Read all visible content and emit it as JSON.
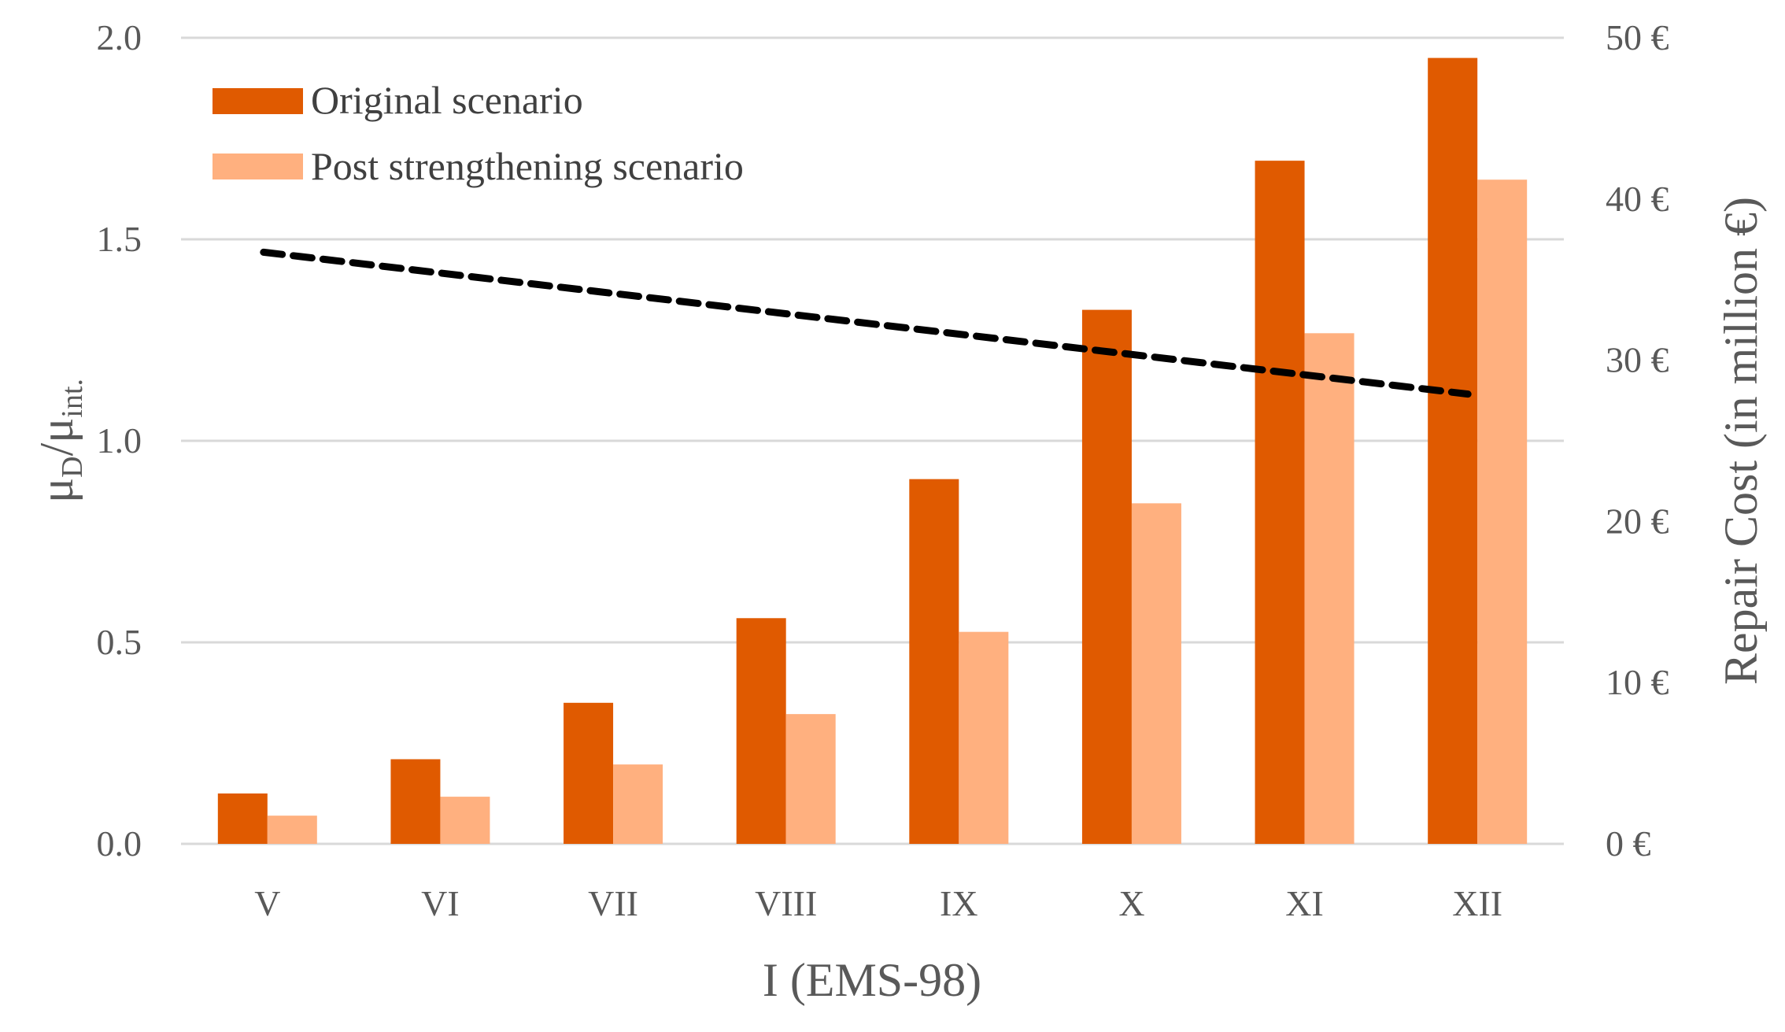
{
  "chart_data": {
    "type": "bar",
    "title": "",
    "xlabel": "I (EMS-98)",
    "ylabel": "μD/μint.",
    "ylabel_parts": {
      "mu1": "μ",
      "sub1": "D",
      "slash": "/",
      "mu2": "μ",
      "sub2": "int."
    },
    "y2label": "Repair Cost (in million €)",
    "categories": [
      "V",
      "VI",
      "VII",
      "VIII",
      "IX",
      "X",
      "XI",
      "XII"
    ],
    "series": [
      {
        "name": "Original scenario",
        "axis": "left",
        "type": "bar",
        "color": "#E05A00",
        "values": [
          0.125,
          0.21,
          0.35,
          0.56,
          0.905,
          1.325,
          1.695,
          1.95
        ]
      },
      {
        "name": "Post strengthening scenario",
        "axis": "left",
        "type": "bar",
        "color": "#FFB07F",
        "values": [
          0.07,
          0.117,
          0.197,
          0.322,
          0.526,
          0.845,
          1.267,
          1.648
        ]
      },
      {
        "name": "Repair cost",
        "axis": "right",
        "type": "line",
        "style": "dashed",
        "color": "#000000",
        "x_range": [
          "V",
          "XII"
        ],
        "values_start_end": [
          36.7,
          27.9
        ]
      }
    ],
    "ylim": [
      0,
      2.0
    ],
    "yticks": [
      "0.0",
      "0.5",
      "1.0",
      "1.5",
      "2.0"
    ],
    "y2lim": [
      0,
      50
    ],
    "y2ticks": [
      "0 €",
      "10 €",
      "20 €",
      "30 €",
      "40 €",
      "50 €"
    ],
    "grid": true,
    "legend_position": "upper-left-inside"
  },
  "legend": {
    "items": [
      {
        "label": "Original scenario",
        "color": "#E05A00"
      },
      {
        "label": "Post strengthening scenario",
        "color": "#FFB07F"
      }
    ]
  },
  "colors": {
    "original": "#E05A00",
    "post": "#FFB07F",
    "grid": "#D9D9D9",
    "text": "#595959",
    "trend": "#000000"
  }
}
